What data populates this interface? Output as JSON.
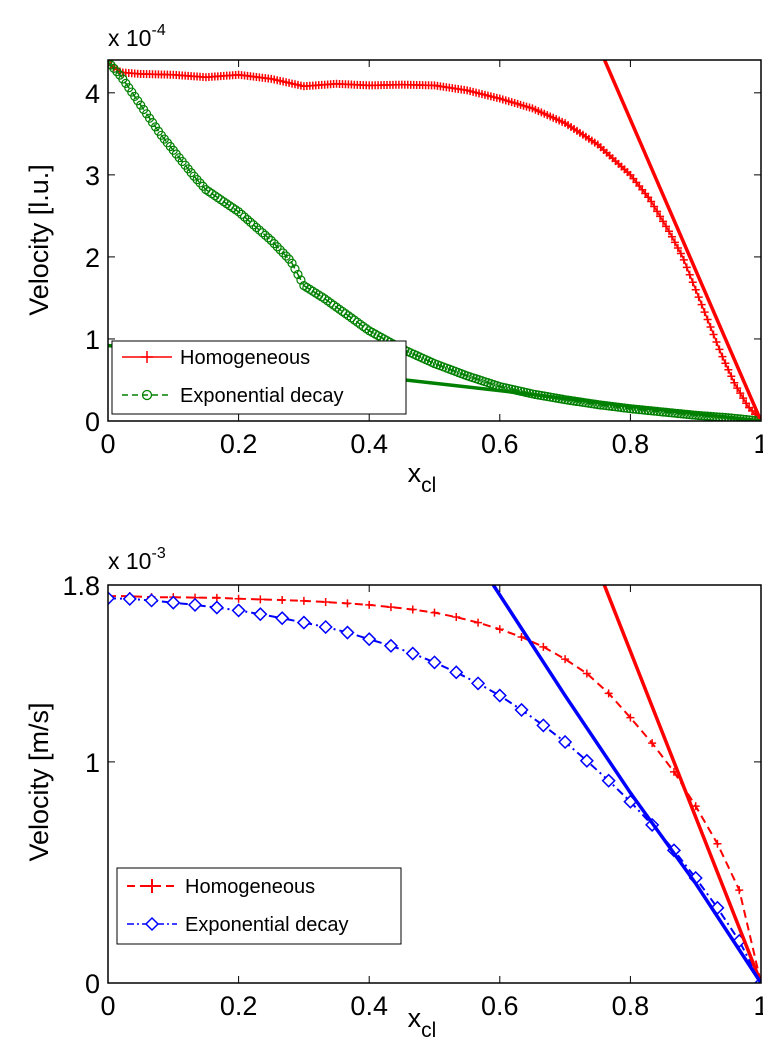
{
  "chart_data": [
    {
      "type": "line",
      "xlabel": "x",
      "xlabel_sub": "cl",
      "ylabel": "Velocity [l.u.]",
      "multiplier_text": "x 10",
      "multiplier_exp": "-4",
      "xlim": [
        0,
        1
      ],
      "ylim": [
        0,
        4.4
      ],
      "xticks": [
        "0",
        "0.2",
        "0.4",
        "0.6",
        "0.8",
        "1"
      ],
      "xtick_values": [
        0,
        0.2,
        0.4,
        0.6,
        0.8,
        1
      ],
      "yticks": [
        "0",
        "1",
        "2",
        "3",
        "4"
      ],
      "ytick_values": [
        0,
        1,
        2,
        3,
        4
      ],
      "grid": false,
      "legend_position": "bottom-left",
      "series": [
        {
          "name": "Homogeneous",
          "color": "#ff0000",
          "marker": "plus",
          "line": "solid",
          "points": [
            [
              0.0,
              4.36
            ],
            [
              0.02,
              4.25
            ],
            [
              0.05,
              4.23
            ],
            [
              0.1,
              4.22
            ],
            [
              0.15,
              4.19
            ],
            [
              0.2,
              4.22
            ],
            [
              0.25,
              4.17
            ],
            [
              0.3,
              4.08
            ],
            [
              0.35,
              4.11
            ],
            [
              0.4,
              4.09
            ],
            [
              0.45,
              4.1
            ],
            [
              0.5,
              4.09
            ],
            [
              0.55,
              4.03
            ],
            [
              0.6,
              3.93
            ],
            [
              0.65,
              3.81
            ],
            [
              0.7,
              3.63
            ],
            [
              0.75,
              3.37
            ],
            [
              0.8,
              3.0
            ],
            [
              0.83,
              2.7
            ],
            [
              0.86,
              2.3
            ],
            [
              0.88,
              2.0
            ],
            [
              0.9,
              1.6
            ],
            [
              0.92,
              1.2
            ],
            [
              0.94,
              0.8
            ],
            [
              0.96,
              0.45
            ],
            [
              0.98,
              0.18
            ],
            [
              1.0,
              0.0
            ]
          ]
        },
        {
          "name": "Exponential decay",
          "color": "#008000",
          "marker": "circle",
          "line": "dashed",
          "points": [
            [
              0.0,
              4.38
            ],
            [
              0.02,
              4.2
            ],
            [
              0.05,
              3.85
            ],
            [
              0.08,
              3.5
            ],
            [
              0.1,
              3.3
            ],
            [
              0.13,
              3.0
            ],
            [
              0.15,
              2.82
            ],
            [
              0.2,
              2.55
            ],
            [
              0.25,
              2.2
            ],
            [
              0.28,
              1.95
            ],
            [
              0.3,
              1.65
            ],
            [
              0.33,
              1.5
            ],
            [
              0.36,
              1.33
            ],
            [
              0.4,
              1.1
            ],
            [
              0.45,
              0.88
            ],
            [
              0.5,
              0.7
            ],
            [
              0.55,
              0.55
            ],
            [
              0.6,
              0.42
            ],
            [
              0.65,
              0.33
            ],
            [
              0.7,
              0.26
            ],
            [
              0.75,
              0.2
            ],
            [
              0.8,
              0.15
            ],
            [
              0.85,
              0.11
            ],
            [
              0.9,
              0.07
            ],
            [
              0.95,
              0.04
            ],
            [
              1.0,
              0.0
            ]
          ]
        },
        {
          "color": "#ff0000",
          "marker": "none",
          "line": "solid-thick",
          "points": [
            [
              0.75,
              4.59
            ],
            [
              1.0,
              0.0
            ]
          ]
        },
        {
          "color": "#008000",
          "marker": "none",
          "line": "solid-thick",
          "points": [
            [
              0.0,
              0.92
            ],
            [
              0.2,
              0.73
            ],
            [
              0.4,
              0.55
            ],
            [
              0.6,
              0.37
            ],
            [
              0.8,
              0.18
            ],
            [
              1.0,
              0.0
            ]
          ]
        }
      ]
    },
    {
      "type": "line",
      "xlabel": "x",
      "xlabel_sub": "cl",
      "ylabel": "Velocity [m/s]",
      "multiplier_text": "x 10",
      "multiplier_exp": "-3",
      "xlim": [
        0,
        1
      ],
      "ylim": [
        0,
        1.8
      ],
      "xticks": [
        "0",
        "0.2",
        "0.4",
        "0.6",
        "0.8",
        "1"
      ],
      "xtick_values": [
        0,
        0.2,
        0.4,
        0.6,
        0.8,
        1
      ],
      "yticks": [
        "0",
        "1",
        "1.8"
      ],
      "ytick_values": [
        0,
        1,
        1.8
      ],
      "grid": false,
      "legend_position": "bottom-left",
      "series": [
        {
          "name": "Homogeneous",
          "color": "#ff0000",
          "marker": "plus",
          "line": "dashed",
          "points": [
            [
              0.0,
              1.75
            ],
            [
              0.0333,
              1.75
            ],
            [
              0.0667,
              1.745
            ],
            [
              0.1,
              1.745
            ],
            [
              0.1333,
              1.743
            ],
            [
              0.1667,
              1.742
            ],
            [
              0.2,
              1.738
            ],
            [
              0.2333,
              1.735
            ],
            [
              0.2667,
              1.732
            ],
            [
              0.3,
              1.728
            ],
            [
              0.3333,
              1.723
            ],
            [
              0.3667,
              1.717
            ],
            [
              0.4,
              1.71
            ],
            [
              0.4333,
              1.7
            ],
            [
              0.4667,
              1.689
            ],
            [
              0.5,
              1.675
            ],
            [
              0.5333,
              1.655
            ],
            [
              0.5667,
              1.63
            ],
            [
              0.6,
              1.6
            ],
            [
              0.6333,
              1.565
            ],
            [
              0.6667,
              1.52
            ],
            [
              0.7,
              1.465
            ],
            [
              0.7333,
              1.4
            ],
            [
              0.7667,
              1.31
            ],
            [
              0.8,
              1.2
            ],
            [
              0.8333,
              1.085
            ],
            [
              0.8667,
              0.955
            ],
            [
              0.9,
              0.8
            ],
            [
              0.9333,
              0.63
            ],
            [
              0.9667,
              0.42
            ],
            [
              1.0,
              0.0
            ]
          ]
        },
        {
          "name": "Exponential decay",
          "color": "#0000ff",
          "marker": "diamond",
          "line": "dashdot",
          "points": [
            [
              0.0,
              1.74
            ],
            [
              0.0333,
              1.737
            ],
            [
              0.0667,
              1.73
            ],
            [
              0.1,
              1.72
            ],
            [
              0.1333,
              1.71
            ],
            [
              0.1667,
              1.698
            ],
            [
              0.2,
              1.685
            ],
            [
              0.2333,
              1.668
            ],
            [
              0.2667,
              1.65
            ],
            [
              0.3,
              1.63
            ],
            [
              0.3333,
              1.61
            ],
            [
              0.3667,
              1.585
            ],
            [
              0.4,
              1.555
            ],
            [
              0.4333,
              1.525
            ],
            [
              0.4667,
              1.49
            ],
            [
              0.5,
              1.45
            ],
            [
              0.5333,
              1.405
            ],
            [
              0.5667,
              1.355
            ],
            [
              0.6,
              1.3
            ],
            [
              0.6333,
              1.235
            ],
            [
              0.6667,
              1.165
            ],
            [
              0.7,
              1.09
            ],
            [
              0.7333,
              1.005
            ],
            [
              0.7667,
              0.915
            ],
            [
              0.8,
              0.82
            ],
            [
              0.8333,
              0.715
            ],
            [
              0.8667,
              0.6
            ],
            [
              0.9,
              0.475
            ],
            [
              0.9333,
              0.34
            ],
            [
              0.9667,
              0.19
            ],
            [
              1.0,
              0.0
            ]
          ]
        },
        {
          "color": "#ff0000",
          "marker": "none",
          "line": "solid-thick",
          "points": [
            [
              0.76,
              1.8
            ],
            [
              1.0,
              0.0
            ]
          ]
        },
        {
          "color": "#0000ff",
          "marker": "none",
          "line": "solid-thick",
          "points": [
            [
              0.59,
              1.8
            ],
            [
              0.7,
              1.3
            ],
            [
              0.8,
              0.86
            ],
            [
              0.9,
              0.45
            ],
            [
              1.0,
              0.0
            ]
          ]
        }
      ]
    }
  ]
}
